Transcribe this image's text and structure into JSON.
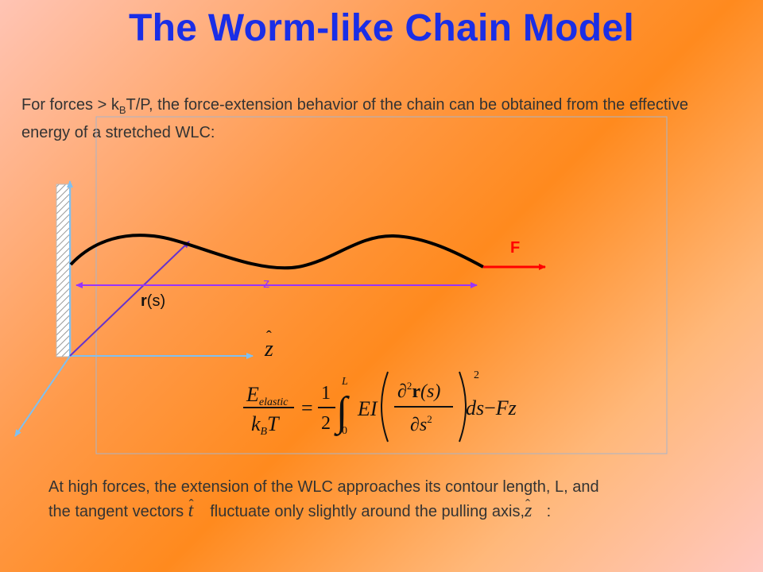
{
  "slide": {
    "title": "The Worm-like Chain Model",
    "intro": {
      "before": "For forces > k",
      "sub": "B",
      "after": "T/P,  the  force-extension behavior of the chain can be obtained from the effective energy of a stretched WLC:"
    },
    "outro": {
      "line1": "At high forces, the extension of the WLC approaches its contour length, L, and",
      "line2a": "the tangent vectors",
      "line2b": "fluctuate only slightly around the pulling axis,",
      "line2c": ":",
      "tangent_symbol": "t",
      "axis_symbol": "z"
    }
  },
  "diagram": {
    "force_label": "F",
    "extension_label": "z",
    "position_label_bold": "r",
    "position_label_rest": "(s)",
    "axis_label": "z",
    "equation": {
      "lhs_num": "E",
      "lhs_num_sub": "elastic",
      "lhs_den_k": "k",
      "lhs_den_sub": "B",
      "lhs_den_T": "T",
      "equals": "=",
      "frac_num": "1",
      "frac_den": "2",
      "int_upper": "L",
      "int_lower": "0",
      "EI": "EI",
      "partial_num": "∂",
      "partial_num_exp": "2",
      "r_bold": "r",
      "r_arg": "(s)",
      "partial_den": "∂s",
      "partial_den_exp": "2",
      "outer_exp": "2",
      "ds": "ds",
      "minus": "−",
      "Fz": "Fz"
    }
  },
  "colors": {
    "title": "#1a2ee6",
    "text": "#333333",
    "force_arrow": "#ff0000",
    "extension_arrow": "#9933ff",
    "axes": "#80c0f0",
    "vector_r": "#6633cc",
    "chain": "#000000"
  }
}
